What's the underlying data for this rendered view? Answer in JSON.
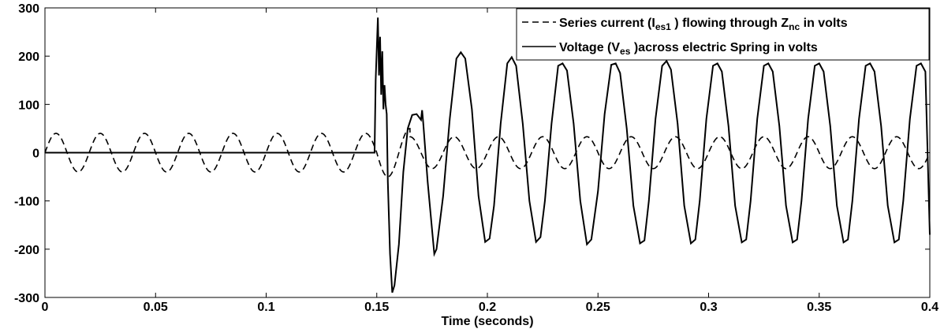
{
  "chart_data": {
    "type": "line",
    "title": "",
    "xlabel": "Time (seconds)",
    "ylabel": "",
    "xlim": [
      0,
      0.4
    ],
    "ylim": [
      -300,
      300
    ],
    "x_ticks": [
      0,
      0.05,
      0.1,
      0.15,
      0.2,
      0.25,
      0.3,
      0.35,
      0.4
    ],
    "x_tick_labels": [
      "0",
      "0.05",
      "0.1",
      "0.15",
      "0.2",
      "0.25",
      "0.3",
      "0.35",
      "0.4"
    ],
    "y_ticks": [
      -300,
      -200,
      -100,
      0,
      100,
      200,
      300
    ],
    "y_tick_labels": [
      "-300",
      "-200",
      "-100",
      "0",
      "100",
      "200",
      "300"
    ],
    "grid": false,
    "legend_position": "top-right",
    "legend": [
      {
        "style": "dashed",
        "segments": [
          {
            "text": "Series current (I",
            "sub": false
          },
          {
            "text": "es1",
            "sub": true
          },
          {
            "text": " ) flowing through Z",
            "sub": false
          },
          {
            "text": "nc",
            "sub": true
          },
          {
            "text": " in volts",
            "sub": false
          }
        ]
      },
      {
        "style": "solid",
        "segments": [
          {
            "text": "Voltage (V",
            "sub": false
          },
          {
            "text": "es",
            "sub": true
          },
          {
            "text": " )across electric Spring in volts",
            "sub": false
          }
        ]
      }
    ],
    "series": [
      {
        "line_style": "dashed",
        "color": "#000000",
        "segments": [
          {
            "x_start": 0.0,
            "x_end": 0.15,
            "amplitude": 40,
            "frequency_hz": 50,
            "phase_deg": 0
          },
          {
            "x_start": 0.15,
            "x_end": 0.165,
            "amplitude": 50,
            "frequency_hz": 50,
            "phase_deg": 0
          },
          {
            "x_start": 0.165,
            "x_end": 0.4,
            "amplitude": 33,
            "frequency_hz": 50,
            "phase_deg": 0
          }
        ]
      },
      {
        "line_style": "solid",
        "color": "#000000",
        "points": [
          [
            0.0,
            0
          ],
          [
            0.149,
            0
          ],
          [
            0.1495,
            150
          ],
          [
            0.1505,
            280
          ],
          [
            0.151,
            160
          ],
          [
            0.1515,
            240
          ],
          [
            0.152,
            120
          ],
          [
            0.1525,
            210
          ],
          [
            0.153,
            90
          ],
          [
            0.1535,
            140
          ],
          [
            0.154,
            100
          ],
          [
            0.1545,
            80
          ],
          [
            0.155,
            -60
          ],
          [
            0.156,
            -210
          ],
          [
            0.157,
            -290
          ],
          [
            0.158,
            -275
          ],
          [
            0.16,
            -190
          ],
          [
            0.162,
            -40
          ],
          [
            0.164,
            50
          ],
          [
            0.166,
            78
          ],
          [
            0.168,
            80
          ],
          [
            0.17,
            68
          ],
          [
            0.1705,
            88
          ],
          [
            0.171,
            62
          ],
          [
            0.173,
            -60
          ],
          [
            0.176,
            -210
          ],
          [
            0.177,
            -200
          ],
          [
            0.18,
            -90
          ],
          [
            0.183,
            70
          ],
          [
            0.186,
            195
          ],
          [
            0.188,
            208
          ],
          [
            0.19,
            195
          ],
          [
            0.193,
            90
          ],
          [
            0.196,
            -90
          ],
          [
            0.199,
            -185
          ],
          [
            0.201,
            -178
          ],
          [
            0.203,
            -110
          ],
          [
            0.206,
            60
          ],
          [
            0.209,
            185
          ],
          [
            0.211,
            198
          ],
          [
            0.213,
            180
          ],
          [
            0.216,
            60
          ],
          [
            0.219,
            -100
          ],
          [
            0.222,
            -185
          ],
          [
            0.224,
            -175
          ],
          [
            0.226,
            -100
          ],
          [
            0.229,
            60
          ],
          [
            0.232,
            180
          ],
          [
            0.234,
            185
          ],
          [
            0.236,
            170
          ],
          [
            0.239,
            60
          ],
          [
            0.242,
            -100
          ],
          [
            0.245,
            -190
          ],
          [
            0.247,
            -180
          ],
          [
            0.25,
            -80
          ],
          [
            0.253,
            80
          ],
          [
            0.256,
            182
          ],
          [
            0.258,
            185
          ],
          [
            0.26,
            165
          ],
          [
            0.263,
            50
          ],
          [
            0.266,
            -110
          ],
          [
            0.269,
            -188
          ],
          [
            0.271,
            -182
          ],
          [
            0.273,
            -100
          ],
          [
            0.276,
            70
          ],
          [
            0.279,
            180
          ],
          [
            0.281,
            190
          ],
          [
            0.283,
            172
          ],
          [
            0.286,
            60
          ],
          [
            0.289,
            -110
          ],
          [
            0.292,
            -188
          ],
          [
            0.294,
            -180
          ],
          [
            0.296,
            -100
          ],
          [
            0.299,
            70
          ],
          [
            0.302,
            180
          ],
          [
            0.304,
            185
          ],
          [
            0.306,
            168
          ],
          [
            0.309,
            55
          ],
          [
            0.312,
            -110
          ],
          [
            0.315,
            -186
          ],
          [
            0.317,
            -180
          ],
          [
            0.319,
            -100
          ],
          [
            0.322,
            70
          ],
          [
            0.325,
            180
          ],
          [
            0.327,
            185
          ],
          [
            0.329,
            168
          ],
          [
            0.332,
            55
          ],
          [
            0.335,
            -110
          ],
          [
            0.338,
            -186
          ],
          [
            0.34,
            -180
          ],
          [
            0.342,
            -100
          ],
          [
            0.345,
            70
          ],
          [
            0.348,
            180
          ],
          [
            0.35,
            185
          ],
          [
            0.352,
            168
          ],
          [
            0.355,
            55
          ],
          [
            0.358,
            -110
          ],
          [
            0.361,
            -186
          ],
          [
            0.363,
            -180
          ],
          [
            0.365,
            -100
          ],
          [
            0.368,
            70
          ],
          [
            0.371,
            180
          ],
          [
            0.373,
            185
          ],
          [
            0.375,
            168
          ],
          [
            0.378,
            55
          ],
          [
            0.381,
            -110
          ],
          [
            0.384,
            -186
          ],
          [
            0.386,
            -180
          ],
          [
            0.388,
            -100
          ],
          [
            0.391,
            70
          ],
          [
            0.394,
            180
          ],
          [
            0.396,
            185
          ],
          [
            0.398,
            168
          ],
          [
            0.4,
            -170
          ]
        ]
      }
    ]
  }
}
